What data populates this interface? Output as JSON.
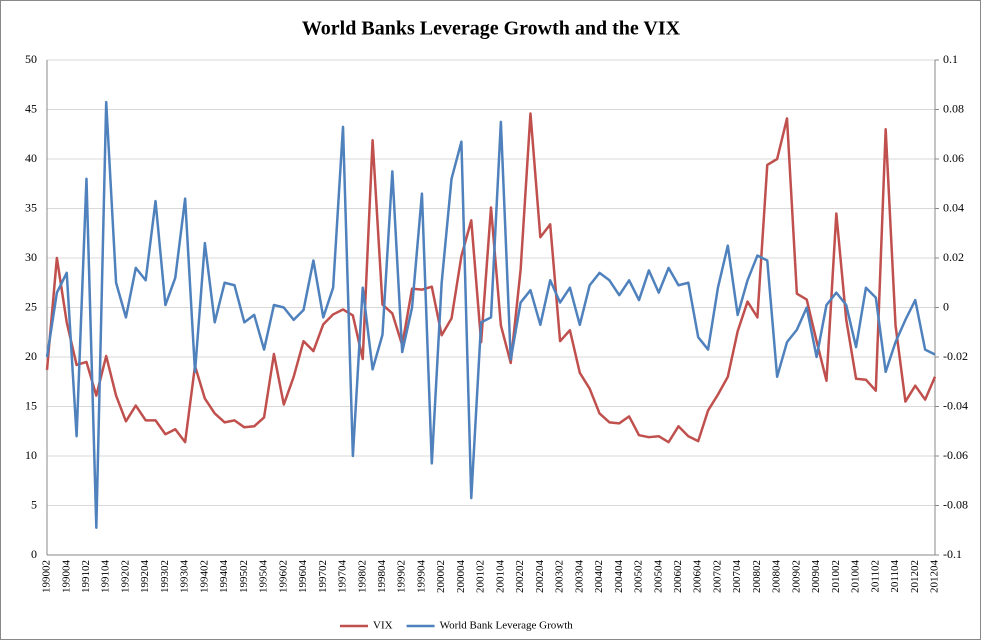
{
  "chart_data": {
    "type": "line",
    "title": "World Banks Leverage Growth and the VIX",
    "categories": [
      "199002",
      null,
      "199004",
      null,
      "199102",
      null,
      "199104",
      null,
      "199202",
      null,
      "199204",
      null,
      "199302",
      null,
      "199304",
      null,
      "199402",
      null,
      "199404",
      null,
      "199502",
      null,
      "199504",
      null,
      "199602",
      null,
      "199604",
      null,
      "199702",
      null,
      "199704",
      null,
      "199802",
      null,
      "199804",
      null,
      "199902",
      null,
      "199904",
      null,
      "200002",
      null,
      "200004",
      null,
      "200102",
      null,
      "200104",
      null,
      "200202",
      null,
      "200204",
      null,
      "200302",
      null,
      "200304",
      null,
      "200402",
      null,
      "200404",
      null,
      "200502",
      null,
      "200504",
      null,
      "200602",
      null,
      "200604",
      null,
      "200702",
      null,
      "200704",
      null,
      "200802",
      null,
      "200804",
      null,
      "200902",
      null,
      "200904",
      null,
      "201002",
      null,
      "201004",
      null,
      "201102",
      null,
      "201104",
      null,
      "201202",
      null,
      "201204"
    ],
    "series": [
      {
        "name": "VIX",
        "color": "#c0504d",
        "values": [
          18.7,
          30.0,
          23.5,
          19.2,
          19.5,
          16.1,
          20.1,
          16.1,
          13.5,
          15.1,
          13.6,
          13.6,
          12.2,
          12.7,
          11.4,
          19.1,
          15.8,
          14.3,
          13.4,
          13.6,
          12.9,
          13.0,
          13.9,
          20.3,
          15.2,
          18.0,
          21.6,
          20.6,
          23.3,
          24.3,
          24.8,
          24.2,
          19.8,
          41.9,
          25.3,
          24.4,
          21.2,
          26.9,
          26.8,
          27.1,
          22.2,
          23.9,
          30.2,
          33.8,
          21.5,
          35.1,
          23.2,
          19.4,
          28.8,
          44.6,
          32.1,
          33.4,
          21.6,
          22.7,
          18.4,
          16.8,
          14.3,
          13.4,
          13.3,
          14.0,
          12.1,
          11.9,
          12.0,
          11.4,
          13.0,
          12.0,
          11.5,
          14.6,
          16.2,
          18.0,
          22.6,
          25.6,
          24.0,
          39.4,
          40.0,
          44.1,
          26.4,
          25.8,
          21.6,
          17.6,
          34.5,
          23.8,
          17.8,
          17.7,
          16.6,
          43.0,
          23.2,
          15.5,
          17.1,
          15.7,
          18.0
        ]
      },
      {
        "name": "World Bank Leverage Growth",
        "color": "#4f81bd",
        "axis": "y2",
        "values": [
          -0.02,
          0.006,
          0.014,
          -0.052,
          0.052,
          -0.089,
          0.083,
          0.01,
          -0.004,
          0.016,
          0.011,
          0.043,
          0.001,
          0.012,
          0.044,
          -0.026,
          0.026,
          -0.006,
          0.01,
          0.009,
          -0.006,
          -0.003,
          -0.017,
          0.001,
          0.0,
          -0.005,
          -0.001,
          0.019,
          -0.004,
          0.008,
          0.073,
          -0.06,
          0.008,
          -0.025,
          -0.011,
          0.055,
          -0.018,
          0.0,
          0.046,
          -0.063,
          0.01,
          0.052,
          0.067,
          -0.077,
          -0.006,
          -0.004,
          0.075,
          -0.021,
          0.002,
          0.007,
          -0.007,
          0.011,
          0.002,
          0.008,
          -0.007,
          0.009,
          0.014,
          0.011,
          0.005,
          0.011,
          0.003,
          0.015,
          0.006,
          0.016,
          0.009,
          0.01,
          -0.012,
          -0.017,
          0.008,
          0.025,
          -0.003,
          0.011,
          0.021,
          0.019,
          -0.028,
          -0.014,
          -0.009,
          0.0,
          -0.02,
          0.001,
          0.006,
          0.001,
          -0.016,
          0.008,
          0.004,
          -0.026,
          -0.014,
          -0.005,
          0.003,
          -0.017,
          -0.019
        ]
      }
    ],
    "ylim": [
      0,
      50
    ],
    "yticks": [
      0,
      5,
      10,
      15,
      20,
      25,
      30,
      35,
      40,
      45,
      50
    ],
    "y2lim": [
      -0.1,
      0.1
    ],
    "y2ticks": [
      -0.1,
      -0.08,
      -0.06,
      -0.04,
      -0.02,
      0,
      0.02,
      0.04,
      0.06,
      0.08,
      0.1
    ],
    "grid": true,
    "legend": "bottom"
  }
}
